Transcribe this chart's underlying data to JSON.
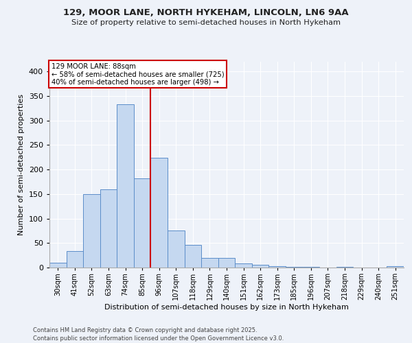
{
  "title1": "129, MOOR LANE, NORTH HYKEHAM, LINCOLN, LN6 9AA",
  "title2": "Size of property relative to semi-detached houses in North Hykeham",
  "xlabel": "Distribution of semi-detached houses by size in North Hykeham",
  "ylabel": "Number of semi-detached properties",
  "bar_labels": [
    "30sqm",
    "41sqm",
    "52sqm",
    "63sqm",
    "74sqm",
    "85sqm",
    "96sqm",
    "107sqm",
    "118sqm",
    "129sqm",
    "140sqm",
    "151sqm",
    "162sqm",
    "173sqm",
    "185sqm",
    "196sqm",
    "207sqm",
    "218sqm",
    "229sqm",
    "240sqm",
    "251sqm"
  ],
  "bar_values": [
    10,
    33,
    150,
    160,
    333,
    182,
    224,
    75,
    46,
    19,
    19,
    8,
    6,
    3,
    2,
    1,
    0,
    1,
    0,
    0,
    3
  ],
  "bar_color": "#c5d8f0",
  "bar_edge_color": "#5b8dc9",
  "annotation_title": "129 MOOR LANE: 88sqm",
  "annotation_line1": "← 58% of semi-detached houses are smaller (725)",
  "annotation_line2": "40% of semi-detached houses are larger (498) →",
  "annotation_box_color": "#ffffff",
  "annotation_box_edge": "#cc0000",
  "vline_color": "#cc0000",
  "ylim": [
    0,
    420
  ],
  "yticks": [
    0,
    50,
    100,
    150,
    200,
    250,
    300,
    350,
    400
  ],
  "footer1": "Contains HM Land Registry data © Crown copyright and database right 2025.",
  "footer2": "Contains public sector information licensed under the Open Government Licence v3.0.",
  "bg_color": "#eef2f9",
  "grid_color": "#ffffff"
}
